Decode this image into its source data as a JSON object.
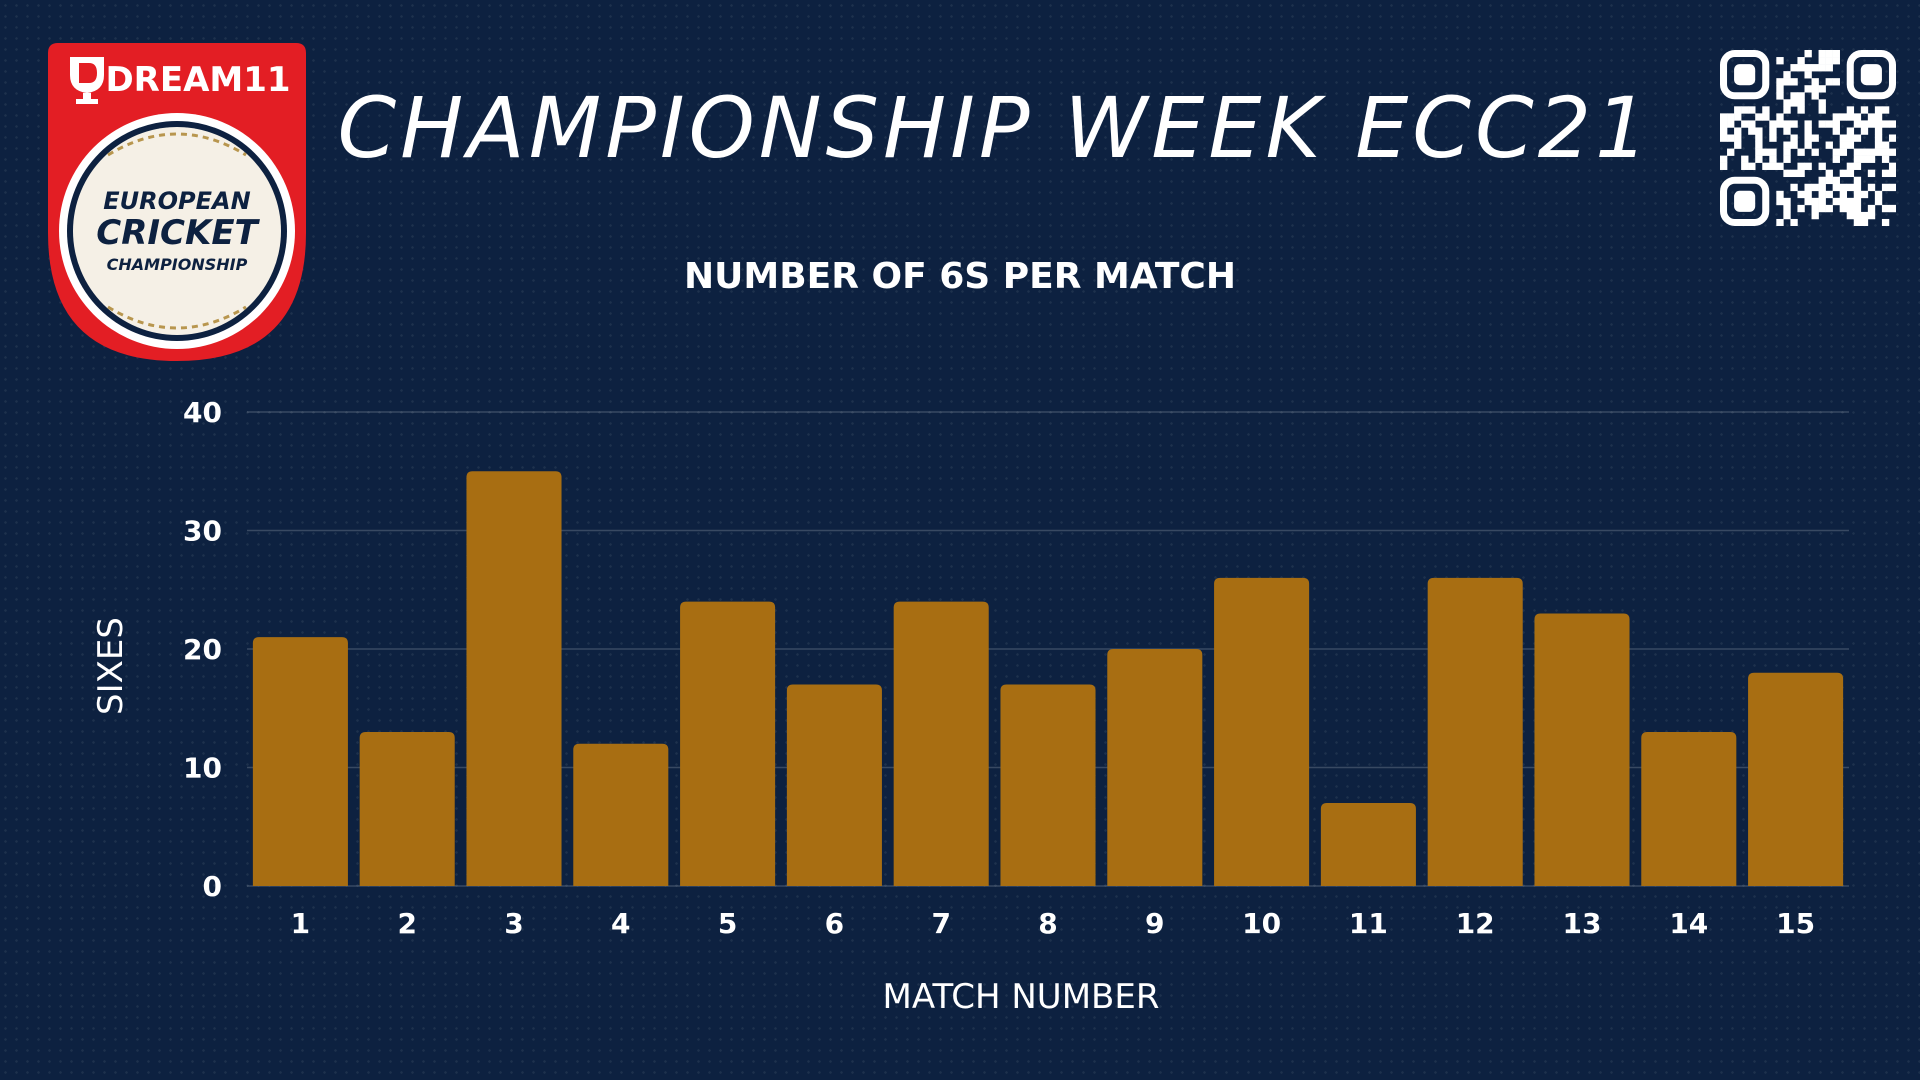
{
  "header": {
    "title": "CHAMPIONSHIP WEEK ECC21"
  },
  "logo": {
    "brand": "DREAM11",
    "line1": "EUROPEAN",
    "line2": "CRICKET",
    "line3": "CHAMPIONSHIP",
    "colors": {
      "red": "#e31e24",
      "navy": "#0d2140",
      "gold": "#b8964e"
    }
  },
  "qr_icon": "qr-code",
  "colors": {
    "background": "#0d2140",
    "bar": "#a86e12",
    "text": "#ffffff"
  },
  "chart_data": {
    "type": "bar",
    "title": "NUMBER OF 6S PER MATCH",
    "xlabel": "MATCH NUMBER",
    "ylabel": "SIXES",
    "categories": [
      "1",
      "2",
      "3",
      "4",
      "5",
      "6",
      "7",
      "8",
      "9",
      "10",
      "11",
      "12",
      "13",
      "14",
      "15"
    ],
    "values": [
      21,
      13,
      35,
      12,
      24,
      17,
      24,
      17,
      20,
      26,
      7,
      26,
      23,
      13,
      18
    ],
    "ylim": [
      0,
      40
    ],
    "yticks": [
      0,
      10,
      20,
      30,
      40
    ],
    "grid": true,
    "legend": "none"
  }
}
